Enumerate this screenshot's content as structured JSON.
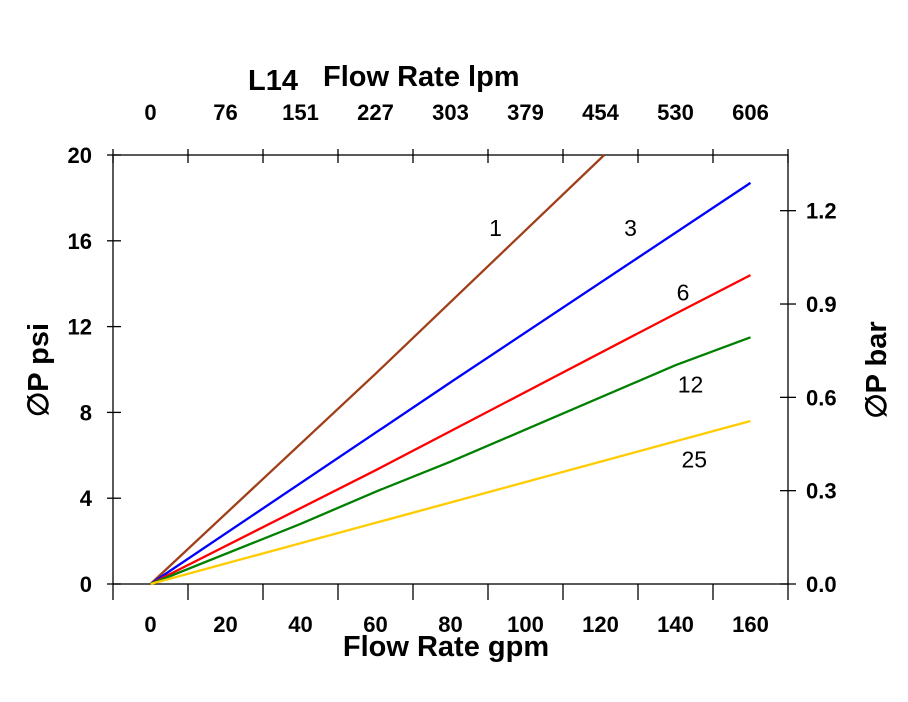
{
  "chart_data": {
    "type": "line",
    "title_prefix": "L14",
    "title": "Flow Rate lpm",
    "xlabel": "Flow Rate gpm",
    "ylabel": "∅P psi",
    "y2label": "∅P bar",
    "xlim": [
      -10,
      170
    ],
    "ylim": [
      0,
      20
    ],
    "y2lim": [
      0,
      1.379
    ],
    "grid": false,
    "x_ticks": [
      0,
      20,
      40,
      60,
      80,
      100,
      120,
      140,
      160
    ],
    "x_tick_labels": [
      "0",
      "20",
      "40",
      "60",
      "80",
      "100",
      "120",
      "140",
      "160"
    ],
    "x2_tick_labels": [
      "0",
      "76",
      "151",
      "227",
      "303",
      "379",
      "454",
      "530",
      "606"
    ],
    "y_ticks": [
      0,
      4,
      8,
      12,
      16,
      20
    ],
    "y_tick_labels": [
      "0",
      "4",
      "8",
      "12",
      "16",
      "20"
    ],
    "y2_ticks": [
      0,
      0.3,
      0.6,
      0.9,
      1.2
    ],
    "y2_tick_labels": [
      "0.0",
      "0.3",
      "0.6",
      "0.9",
      "1.2"
    ],
    "series": [
      {
        "name": "1",
        "color": "#A0401A",
        "points": [
          [
            0,
            0
          ],
          [
            60,
            9.8
          ],
          [
            121,
            20
          ]
        ],
        "label_at": [
          92,
          16.6
        ]
      },
      {
        "name": "3",
        "color": "#0000FF",
        "points": [
          [
            0,
            0
          ],
          [
            80,
            9.4
          ],
          [
            160,
            18.7
          ]
        ],
        "label_at": [
          128,
          16.6
        ]
      },
      {
        "name": "6",
        "color": "#FF0000",
        "points": [
          [
            0,
            0
          ],
          [
            60,
            5.3
          ],
          [
            140,
            12.6
          ],
          [
            160,
            14.4
          ]
        ],
        "label_at": [
          142,
          13.6
        ]
      },
      {
        "name": "12",
        "color": "#008000",
        "points": [
          [
            0,
            0
          ],
          [
            40,
            2.8
          ],
          [
            60,
            4.3
          ],
          [
            80,
            5.7
          ],
          [
            100,
            7.2
          ],
          [
            140,
            10.2
          ],
          [
            160,
            11.5
          ]
        ],
        "label_at": [
          144,
          9.3
        ]
      },
      {
        "name": "25",
        "color": "#FFCC00",
        "points": [
          [
            0,
            0
          ],
          [
            40,
            1.9
          ],
          [
            80,
            3.8
          ],
          [
            160,
            7.6
          ]
        ],
        "label_at": [
          145,
          5.8
        ]
      }
    ]
  }
}
